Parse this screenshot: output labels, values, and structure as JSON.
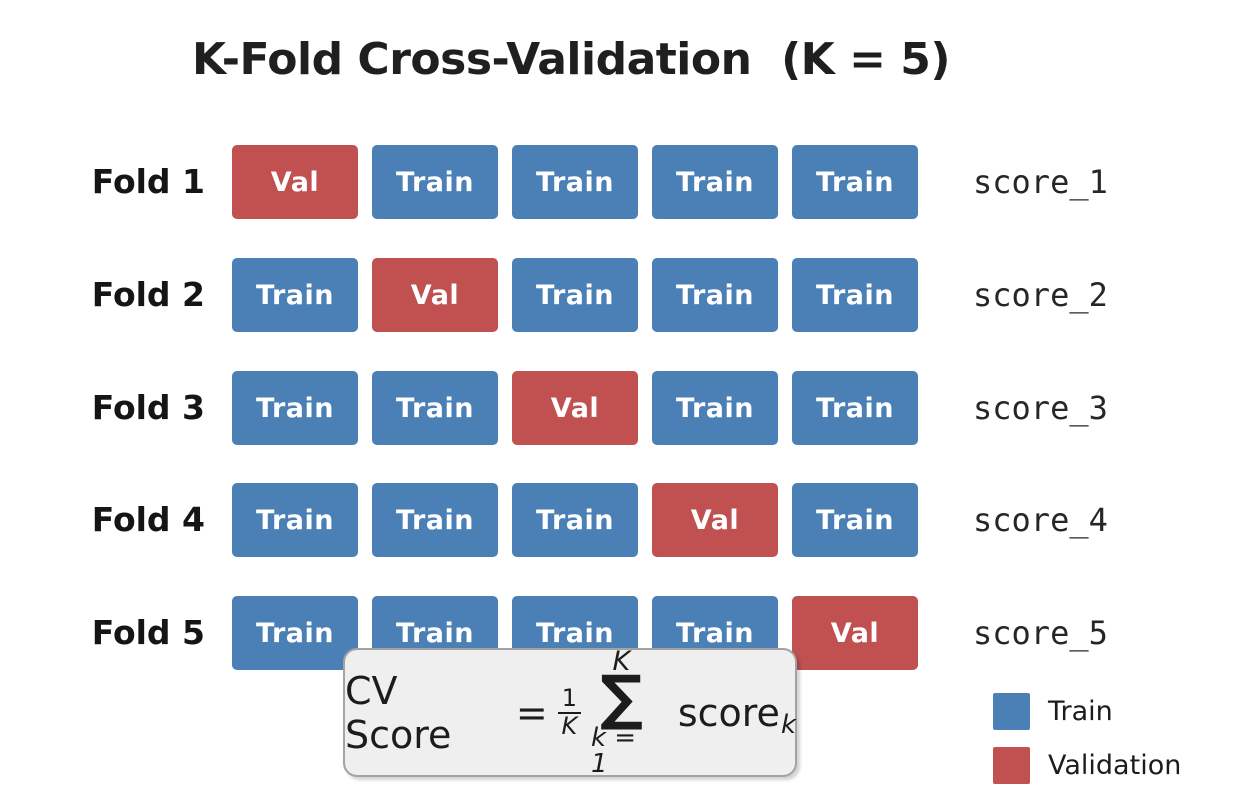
{
  "title": "K-Fold Cross-Validation  (K = 5)",
  "colors": {
    "train": "#4a80b5",
    "validation": "#c05150",
    "title_text": "#1f1f1f",
    "box_bg": "#efefef",
    "box_border": "#a3a3a3"
  },
  "grid": {
    "rows": [
      {
        "fold_label": "Fold 1",
        "cells": [
          "Val",
          "Train",
          "Train",
          "Train",
          "Train"
        ],
        "score_label": "score_1"
      },
      {
        "fold_label": "Fold 2",
        "cells": [
          "Train",
          "Val",
          "Train",
          "Train",
          "Train"
        ],
        "score_label": "score_2"
      },
      {
        "fold_label": "Fold 3",
        "cells": [
          "Train",
          "Train",
          "Val",
          "Train",
          "Train"
        ],
        "score_label": "score_3"
      },
      {
        "fold_label": "Fold 4",
        "cells": [
          "Train",
          "Train",
          "Train",
          "Val",
          "Train"
        ],
        "score_label": "score_4"
      },
      {
        "fold_label": "Fold 5",
        "cells": [
          "Train",
          "Train",
          "Train",
          "Train",
          "Val"
        ],
        "score_label": "score_5"
      }
    ]
  },
  "formula": {
    "lhs": "CV Score",
    "equals": "=",
    "fraction": {
      "numerator": "1",
      "denominator": "K"
    },
    "sum": {
      "top": "K",
      "symbol": "∑",
      "bottom": "k = 1"
    },
    "rhs_base": "score",
    "rhs_sub": "k"
  },
  "legend": {
    "items": [
      {
        "label": "Train",
        "color": "#4a80b5"
      },
      {
        "label": "Validation",
        "color": "#c05150"
      }
    ]
  }
}
